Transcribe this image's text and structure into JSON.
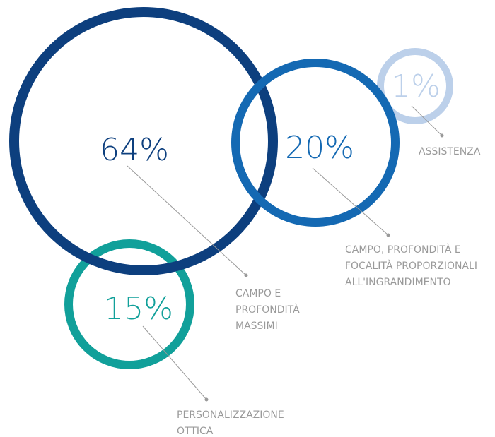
{
  "chart_data": {
    "type": "bubble",
    "categories": [
      [
        "CAMPO E",
        "PROFONDITÀ",
        "MASSIMI"
      ],
      [
        "CAMPO, PROFONDITÀ E",
        "FOCALITÀ PROPORZIONALI",
        "ALL'INGRANDIMENTO"
      ],
      [
        "PERSONALIZZAZIONE",
        "OTTICA"
      ],
      [
        "ASSISTENZA"
      ]
    ],
    "values": [
      64,
      20,
      15,
      1
    ],
    "value_labels": [
      "64%",
      "20%",
      "15%",
      "1%"
    ],
    "colors": [
      "#0d3f7e",
      "#1469b3",
      "#11a09a",
      "#bcd0ea"
    ]
  }
}
